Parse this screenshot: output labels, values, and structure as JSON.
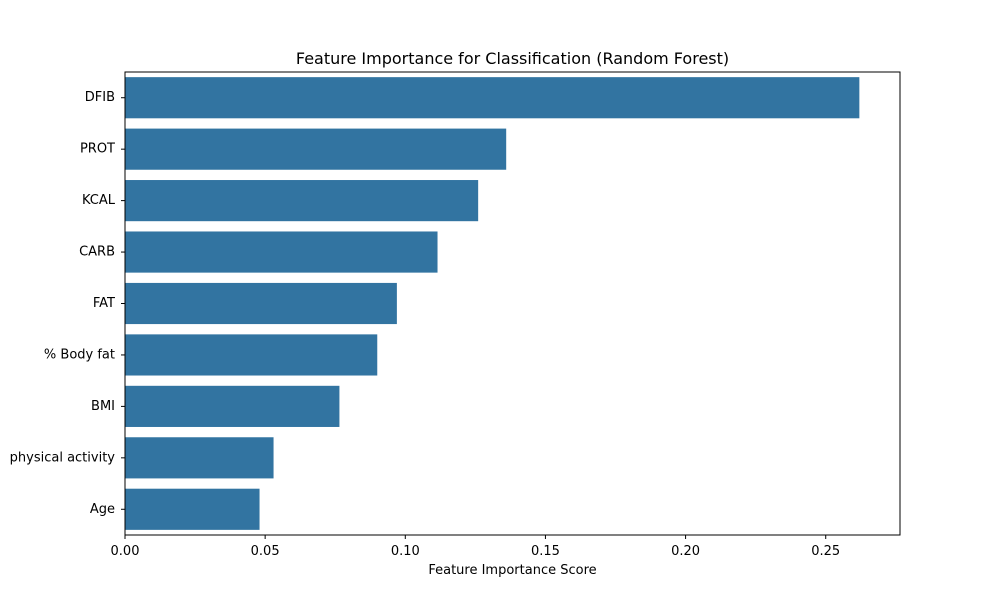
{
  "chart_data": {
    "type": "bar",
    "orientation": "horizontal",
    "title": "Feature Importance for Classification (Random Forest)",
    "xlabel": "Feature Importance Score",
    "ylabel": "",
    "categories": [
      "DFIB",
      "PROT",
      "KCAL",
      "CARB",
      "FAT",
      "% Body fat",
      "BMI",
      "physical activity",
      "Age"
    ],
    "values": [
      0.262,
      0.136,
      0.126,
      0.1115,
      0.097,
      0.09,
      0.0765,
      0.053,
      0.048
    ],
    "xlim": [
      0,
      0.2765
    ],
    "xticks": [
      0.0,
      0.05,
      0.1,
      0.15,
      0.2,
      0.25
    ],
    "xtick_labels": [
      "0.00",
      "0.05",
      "0.10",
      "0.15",
      "0.20",
      "0.25"
    ],
    "grid": false,
    "legend": "none",
    "bar_color": "#3274a1"
  }
}
